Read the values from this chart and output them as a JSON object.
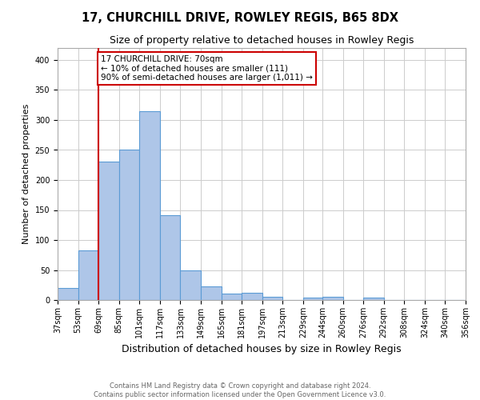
{
  "title": "17, CHURCHILL DRIVE, ROWLEY REGIS, B65 8DX",
  "subtitle": "Size of property relative to detached houses in Rowley Regis",
  "xlabel": "Distribution of detached houses by size in Rowley Regis",
  "ylabel": "Number of detached properties",
  "bin_edges": [
    37,
    53,
    69,
    85,
    101,
    117,
    133,
    149,
    165,
    181,
    197,
    213,
    229,
    244,
    260,
    276,
    292,
    308,
    324,
    340,
    356
  ],
  "bar_heights": [
    20,
    83,
    231,
    251,
    314,
    142,
    50,
    23,
    11,
    12,
    5,
    0,
    4,
    5,
    0,
    4,
    0,
    0,
    0,
    0
  ],
  "bar_color": "#aec6e8",
  "bar_edgecolor": "#5b9bd5",
  "property_line_x": 69,
  "property_line_color": "#cc0000",
  "annotation_line1": "17 CHURCHILL DRIVE: 70sqm",
  "annotation_line2": "← 10% of detached houses are smaller (111)",
  "annotation_line3": "90% of semi-detached houses are larger (1,011) →",
  "annotation_box_color": "#cc0000",
  "annotation_text_color": "#000000",
  "ylim": [
    0,
    420
  ],
  "yticks": [
    0,
    50,
    100,
    150,
    200,
    250,
    300,
    350,
    400
  ],
  "footer_text": "Contains HM Land Registry data © Crown copyright and database right 2024.\nContains public sector information licensed under the Open Government Licence v3.0.",
  "background_color": "#ffffff",
  "grid_color": "#cccccc",
  "title_fontsize": 10.5,
  "subtitle_fontsize": 9,
  "xlabel_fontsize": 9,
  "ylabel_fontsize": 8,
  "tick_fontsize": 7,
  "annotation_fontsize": 7.5,
  "footer_fontsize": 6
}
